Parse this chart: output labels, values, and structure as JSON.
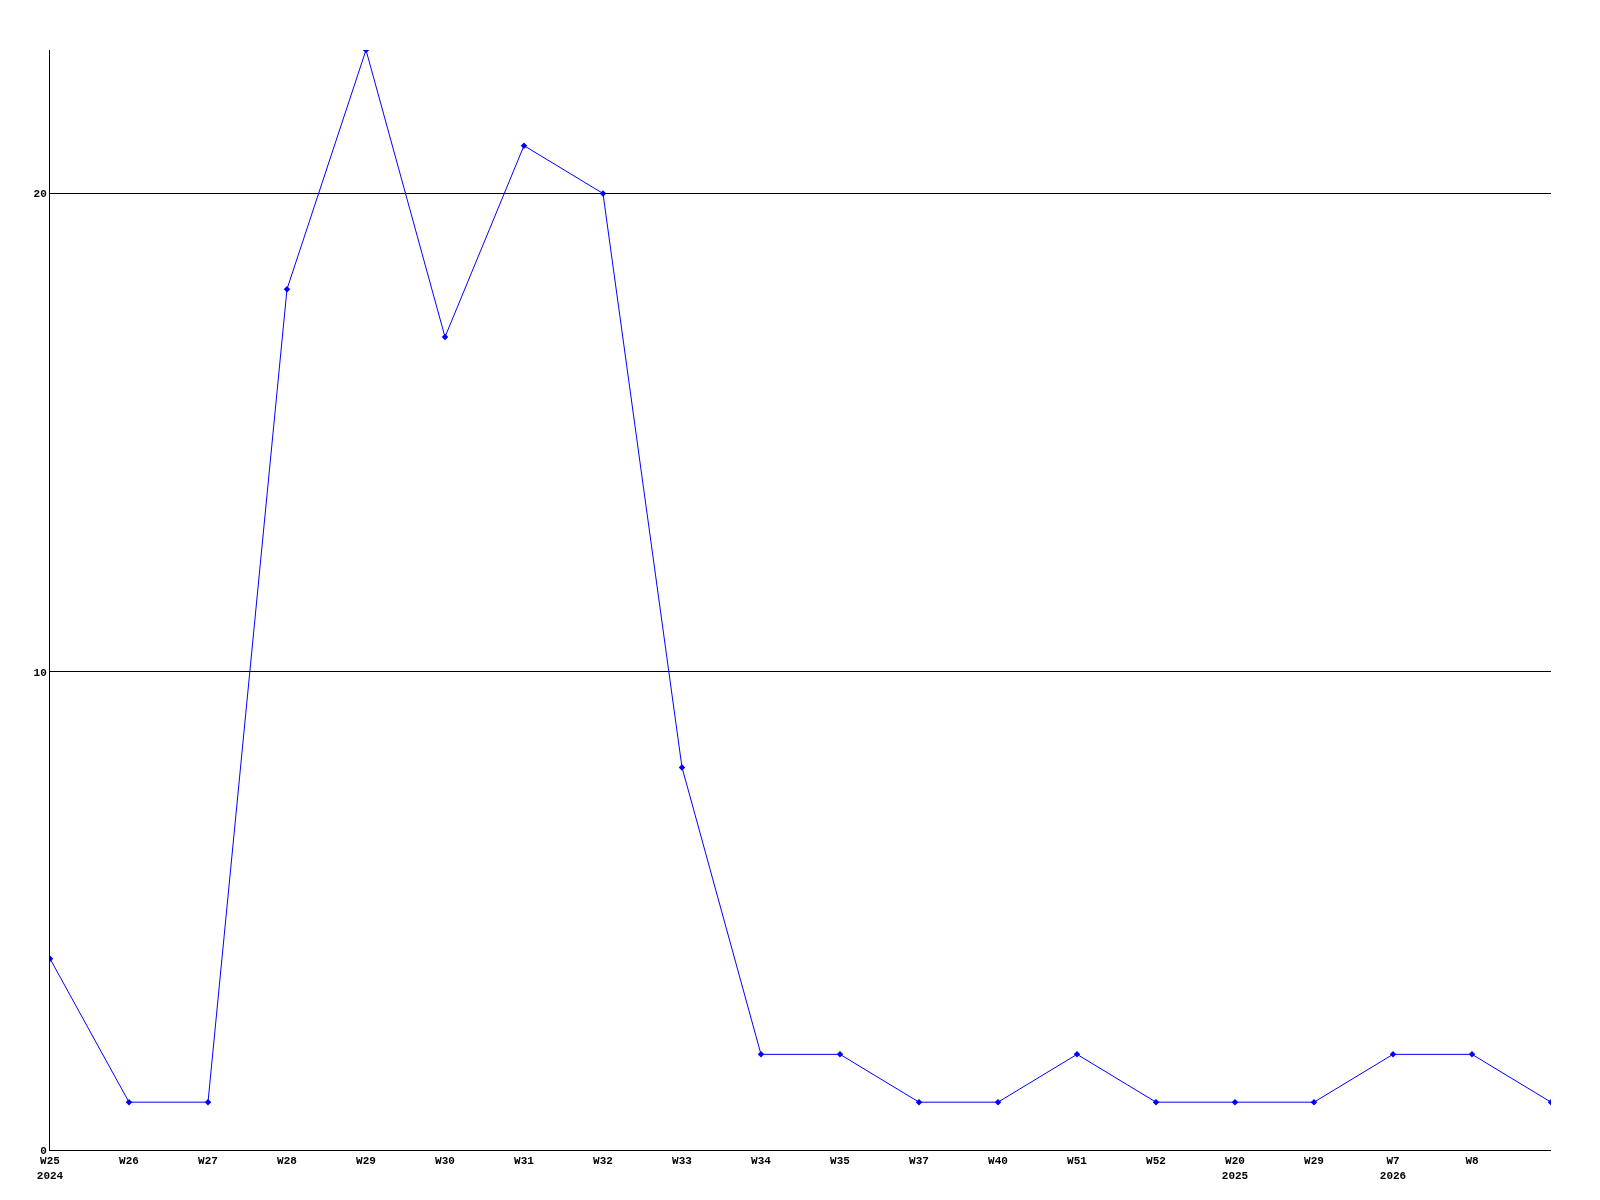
{
  "chart_data": {
    "type": "line",
    "categories": [
      "W25\n2024",
      "W26",
      "W27",
      "W28",
      "W29",
      "W30",
      "W31",
      "W32",
      "W33",
      "W34",
      "W35",
      "W37",
      "W40",
      "W51",
      "W52",
      "W20\n2025",
      "W29",
      "W7\n2026",
      "W8",
      null
    ],
    "series": [
      {
        "color": "#0000ff",
        "values": [
          4,
          1,
          1,
          18,
          23,
          17,
          21,
          20,
          8,
          2,
          2,
          1,
          1,
          2,
          1,
          1,
          1,
          2,
          2,
          1
        ]
      }
    ],
    "ylim": [
      0,
      23
    ],
    "yticks": [
      0,
      10,
      20
    ],
    "grid": "y",
    "marker": "diamond",
    "line_style": "solid"
  }
}
